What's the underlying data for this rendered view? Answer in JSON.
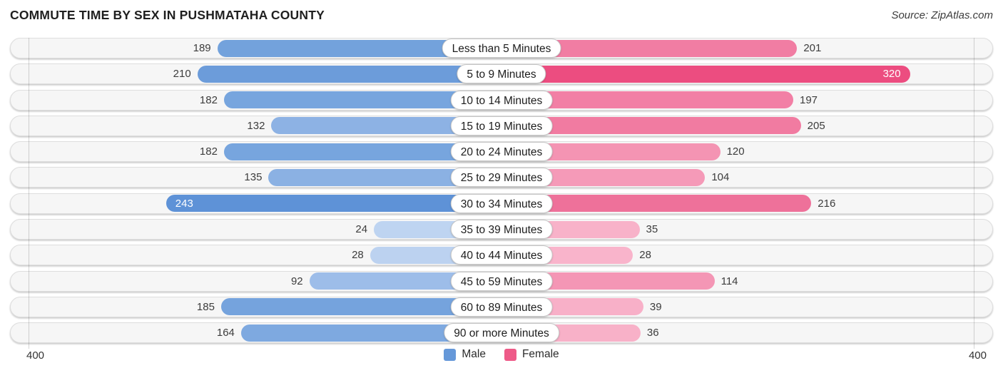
{
  "title": "COMMUTE TIME BY SEX IN PUSHMATAHA COUNTY",
  "source": "Source: ZipAtlas.com",
  "axis": {
    "left_max": "400",
    "right_max": "400"
  },
  "legend": [
    {
      "label": "Male",
      "color": "#6598d9"
    },
    {
      "label": "Female",
      "color": "#ee5a88"
    }
  ],
  "chart_data": {
    "type": "bar",
    "orientation": "bidirectional-horizontal",
    "title": "COMMUTE TIME BY SEX IN PUSHMATAHA COUNTY",
    "categories": [
      "Less than 5 Minutes",
      "5 to 9 Minutes",
      "10 to 14 Minutes",
      "15 to 19 Minutes",
      "20 to 24 Minutes",
      "25 to 29 Minutes",
      "30 to 34 Minutes",
      "35 to 39 Minutes",
      "40 to 44 Minutes",
      "45 to 59 Minutes",
      "60 to 89 Minutes",
      "90 or more Minutes"
    ],
    "series": [
      {
        "name": "Male",
        "side": "left",
        "values": [
          189,
          210,
          182,
          132,
          182,
          135,
          243,
          24,
          28,
          92,
          185,
          164
        ]
      },
      {
        "name": "Female",
        "side": "right",
        "values": [
          201,
          320,
          197,
          205,
          120,
          104,
          216,
          35,
          28,
          114,
          39,
          36
        ]
      }
    ],
    "xlim": [
      0,
      400
    ],
    "legend_position": "bottom-center",
    "grid": "edge-gridlines-at-400"
  },
  "row_styles": {
    "male_colors": [
      "#73a2dc",
      "#6c9cda",
      "#77a5de",
      "#8db2e4",
      "#77a5de",
      "#8bb1e3",
      "#5e92d7",
      "#bed4f1",
      "#bcd2f0",
      "#9dbde9",
      "#75a3dd",
      "#7ea9e0"
    ],
    "female_colors": [
      "#f17da3",
      "#ec4d80",
      "#f27fa5",
      "#f17ba1",
      "#f494b3",
      "#f59ab8",
      "#ee719a",
      "#f8b2c9",
      "#f9b4cb",
      "#f496b5",
      "#f8b0c8",
      "#f8b1c8"
    ],
    "male_label_inside": [
      false,
      false,
      false,
      false,
      false,
      false,
      true,
      false,
      false,
      false,
      false,
      false
    ],
    "female_label_inside": [
      false,
      true,
      false,
      false,
      false,
      false,
      false,
      false,
      false,
      false,
      false,
      false
    ]
  }
}
